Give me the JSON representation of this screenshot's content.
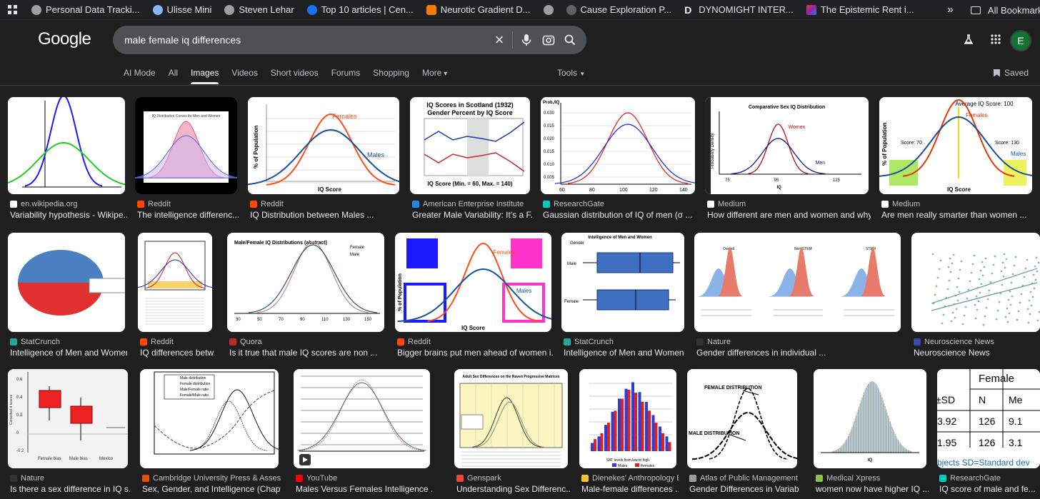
{
  "bookmarks": [
    {
      "label": "Personal Data Tracki...",
      "icon": "globe-icon",
      "color": "#9aa0a6"
    },
    {
      "label": "Ulisse Mini",
      "icon": "moon-icon",
      "color": "#8ab4f8"
    },
    {
      "label": "Steven Lehar",
      "icon": "globe-icon",
      "color": "#9aa0a6"
    },
    {
      "label": "Top 10 articles | Cen...",
      "icon": "shield-icon",
      "color": "#1a73e8"
    },
    {
      "label": "Neurotic Gradient D...",
      "icon": "blogger-icon",
      "color": "#f57c00"
    },
    {
      "label": "",
      "icon": "globe-icon",
      "color": "#9aa0a6"
    },
    {
      "label": "Cause Exploration P...",
      "icon": "gear-icon",
      "color": "#5f6368"
    },
    {
      "label": "DYNOMIGHT INTER...",
      "icon": "d-logo-icon",
      "color": "#ffffff"
    },
    {
      "label": "The Epistemic Rent i...",
      "icon": "colorful-square-icon",
      "color": "#c2185b"
    }
  ],
  "bookmarks_more": "»",
  "all_bookmarks": "All Bookmarks",
  "logo": "Google",
  "search": {
    "query": "male female iq differences"
  },
  "tabs": [
    "AI Mode",
    "All",
    "Images",
    "Videos",
    "Short videos",
    "Forums",
    "Shopping",
    "More"
  ],
  "active_tab": "Images",
  "tools_label": "Tools",
  "saved_label": "Saved",
  "avatar_letter": "E",
  "results": [
    [
      {
        "source": "en.wikipedia.org",
        "title": "Variability hypothesis - Wikipe...",
        "fav": "#ffffff",
        "kind": "bell2"
      },
      {
        "source": "Reddit",
        "title": "The intelligence differenc...",
        "fav": "#ff4500",
        "kind": "pinkbell"
      },
      {
        "source": "Reddit",
        "title": "IQ Distribution between Males ...",
        "fav": "#ff4500",
        "kind": "fm"
      },
      {
        "source": "American Enterprise Institute",
        "title": "Greater Male Variability: It's a F...",
        "fav": "#1e88e5",
        "kind": "scotland"
      },
      {
        "source": "ResearchGate",
        "title": "Gaussian distribution of IQ of men (σ ...",
        "fav": "#00ccbb",
        "kind": "gauss"
      },
      {
        "source": "Medium",
        "title": "How different are men and women and why...",
        "fav": "#ffffff",
        "kind": "comparative"
      },
      {
        "source": "Medium",
        "title": "Are men really smarter than women ...",
        "fav": "#ffffff",
        "kind": "avg100"
      }
    ],
    [
      {
        "source": "StatCrunch",
        "title": "Intelligence of Men and Women",
        "fav": "#26a69a",
        "kind": "pie"
      },
      {
        "source": "Reddit",
        "title": "IQ differences betw...",
        "fav": "#ff4500",
        "kind": "raven"
      },
      {
        "source": "Quora",
        "title": "Is it true that male IQ scores are non ...",
        "fav": "#b92b27",
        "kind": "abstract"
      },
      {
        "source": "Reddit",
        "title": "Bigger brains put men ahead of women i...",
        "fav": "#ff4500",
        "kind": "glass"
      },
      {
        "source": "StatCrunch",
        "title": "Intelligence of Men and Women",
        "fav": "#26a69a",
        "kind": "box"
      },
      {
        "source": "Nature",
        "title": "Gender differences in individual ...",
        "fav": "#333333",
        "kind": "stem"
      },
      {
        "source": "Neuroscience News",
        "title": "Neuroscience News",
        "fav": "#3949ab",
        "kind": "scatter"
      }
    ],
    [
      {
        "source": "Nature",
        "title": "Is there a sex difference in IQ s...",
        "fav": "#333333",
        "kind": "redbox"
      },
      {
        "source": "Cambridge University Press & Assessment",
        "title": "Sex, Gender, and Intelligence (Chapter...",
        "fav": "#e65100",
        "kind": "ratio"
      },
      {
        "source": "YouTube",
        "title": "Males Versus Females Intelligence ...",
        "fav": "#ff0000",
        "kind": "youtube"
      },
      {
        "source": "Genspark",
        "title": "Understanding Sex Differenc...",
        "fav": "#f44336",
        "kind": "adult"
      },
      {
        "source": "Dienekes' Anthropology Bl...",
        "title": "Male-female differences ...",
        "fav": "#fbc02d",
        "kind": "sat"
      },
      {
        "source": "Atlas of Public Management",
        "title": "Gender Differences in Variabil...",
        "fav": "#9e9e9e",
        "kind": "sketch"
      },
      {
        "source": "Medical Xpress",
        "title": "women now have higher IQ ...",
        "fav": "#8bc34a",
        "kind": "hist"
      },
      {
        "source": "ResearchGate",
        "title": "IQ score of male and fe...",
        "fav": "#00ccbb",
        "kind": "table"
      }
    ]
  ],
  "thumb_text": {
    "scotland_title": "IQ Scores in Scotland (1932)",
    "scotland_sub": "Gender Percent by IQ Score",
    "scotland_foot": "IQ Score (Min. = 60, Max. = 140)",
    "females": "Females",
    "males": "Males",
    "pop_axis": "% of Population",
    "iq_score": "IQ Score",
    "prob_iq": "Prob./IQ",
    "gauss_x": [
      "60",
      "80",
      "100",
      "120",
      "140"
    ],
    "gauss_y": [
      "0.030",
      "0.025",
      "0.020",
      "0.015",
      "0.010",
      "0.005"
    ],
    "comparative_title": "Comparative Sex IQ Distribution",
    "women": "Women",
    "men": "Men",
    "prob_density": "Probability Density",
    "iq": "IQ",
    "comp_x": [
      "75",
      "95",
      "125"
    ],
    "avg_title": "Average IQ Score: 100",
    "score70": "Score: 70",
    "score130": "Score: 130",
    "abstract_title": "Male/Female IQ Distributions (abstract)",
    "female": "Female",
    "male": "Male",
    "abstract_x": [
      "30",
      "50",
      "70",
      "90",
      "110",
      "130",
      "150"
    ],
    "glass_left": "The Glass Basement Never Discussed",
    "glass_right": "The Glass Ceiling Always Discussed",
    "box_title": "Intelligence of Men and Women",
    "box_gender": "Gender",
    "box_male": "Male",
    "box_female": "Female",
    "stem_labels": [
      "Overall",
      "Non-STEM",
      "STEM"
    ],
    "redbox_ylabel": "Corrected d scores",
    "redbox_x": [
      "Female bias",
      "Male bias",
      "Mexico"
    ],
    "redbox_y": [
      "0.6",
      "0.4",
      "0.2",
      "0",
      "-0.2"
    ],
    "ratio_legend": [
      "Male distribution",
      "Female distribution",
      "Male/Female ratio",
      "Female/Male ratio"
    ],
    "adult_title": "Adult Sex Differences on the Raven Progressive Matrices",
    "sat_x": "SAT levels from low to high",
    "sat_legend": [
      "Males",
      "Females"
    ],
    "female_dist": "FEMALE DISTRIBUTION",
    "male_dist": "MALE DISTRIBUTION",
    "table_header": "Female",
    "table_cols": [
      "±SD",
      "N",
      "Me"
    ],
    "table_rows": [
      [
        "3.92",
        "126",
        "9.1"
      ],
      [
        "1.95",
        "126",
        "3.1"
      ]
    ],
    "table_foot": "bjects SD=Standard dev"
  }
}
